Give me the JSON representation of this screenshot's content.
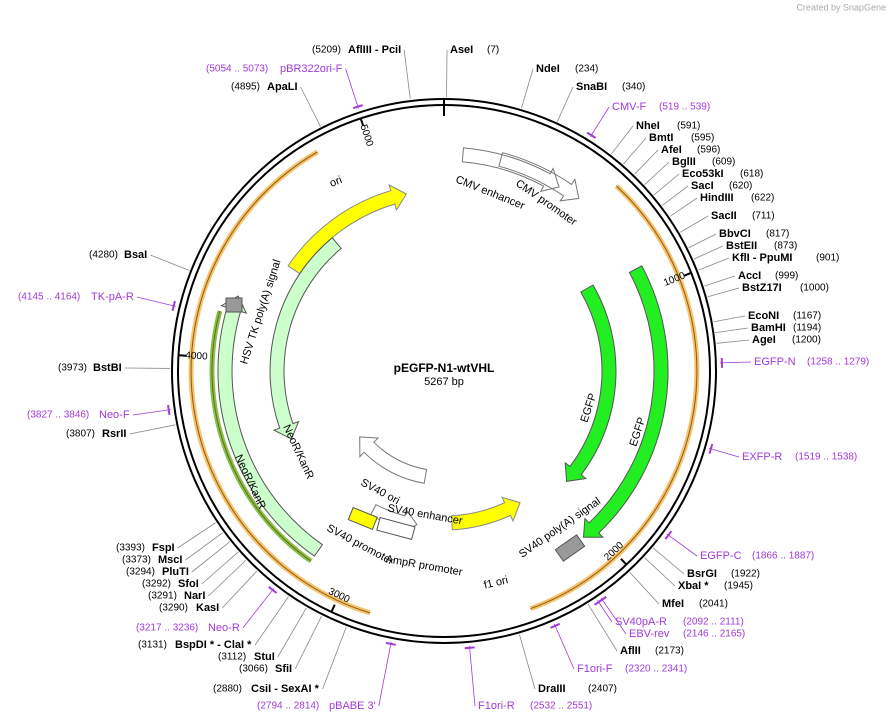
{
  "brand": "Created by SnapGene",
  "plasmid": {
    "name": "pEGFP-N1-wtVHL",
    "size": "5267 bp"
  },
  "ruler": [
    1000,
    2000,
    3000,
    4000,
    5000
  ],
  "enzymes": [
    {
      "name": "AseI",
      "site": "(7)"
    },
    {
      "name": "NdeI",
      "site": "(234)"
    },
    {
      "name": "SnaBI",
      "site": "(340)"
    },
    {
      "name": "NheI",
      "site": "(591)"
    },
    {
      "name": "BmtI",
      "site": "(595)"
    },
    {
      "name": "AfeI",
      "site": "(596)"
    },
    {
      "name": "BglII",
      "site": "(609)"
    },
    {
      "name": "Eco53kI",
      "site": "(618)"
    },
    {
      "name": "SacI",
      "site": "(620)"
    },
    {
      "name": "HindIII",
      "site": "(622)"
    },
    {
      "name": "SacII",
      "site": "(711)"
    },
    {
      "name": "BbvCI",
      "site": "(817)"
    },
    {
      "name": "BstEII",
      "site": "(873)"
    },
    {
      "name": "KflI - PpuMI",
      "site": "(901)"
    },
    {
      "name": "AccI",
      "site": "(999)"
    },
    {
      "name": "BstZ17I",
      "site": "(1000)"
    },
    {
      "name": "EcoNI",
      "site": "(1167)"
    },
    {
      "name": "BamHI",
      "site": "(1194)"
    },
    {
      "name": "AgeI",
      "site": "(1200)"
    },
    {
      "name": "BsrGI",
      "site": "(1922)"
    },
    {
      "name": "XbaI *",
      "site": "(1945)"
    },
    {
      "name": "MfeI",
      "site": "(2041)"
    },
    {
      "name": "AflII",
      "site": "(2173)"
    },
    {
      "name": "DraIII",
      "site": "(2407)"
    },
    {
      "name": "CsiI - SexAI *",
      "site": "(2880)"
    },
    {
      "name": "SfiI",
      "site": "(3066)"
    },
    {
      "name": "StuI",
      "site": "(3112)"
    },
    {
      "name": "BspDI * - ClaI *",
      "site": "(3131)"
    },
    {
      "name": "KasI",
      "site": "(3290)"
    },
    {
      "name": "NarI",
      "site": "(3291)"
    },
    {
      "name": "SfoI",
      "site": "(3292)"
    },
    {
      "name": "PluTI",
      "site": "(3294)"
    },
    {
      "name": "MscI",
      "site": "(3373)"
    },
    {
      "name": "FspI",
      "site": "(3393)"
    },
    {
      "name": "RsrII",
      "site": "(3807)"
    },
    {
      "name": "BstBI",
      "site": "(3973)"
    },
    {
      "name": "BsaI",
      "site": "(4280)"
    },
    {
      "name": "ApaLI",
      "site": "(4895)"
    },
    {
      "name": "AflIII - PciI",
      "site": "(5209)"
    }
  ],
  "primers": [
    {
      "name": "CMV-F",
      "range": "(519 .. 539)"
    },
    {
      "name": "EGFP-N",
      "range": "(1258 .. 1279)"
    },
    {
      "name": "EXFP-R",
      "range": "(1519 .. 1538)"
    },
    {
      "name": "EGFP-C",
      "range": "(1866 .. 1887)"
    },
    {
      "name": "SV40pA-R",
      "range": "(2092 .. 2111)"
    },
    {
      "name": "EBV-rev",
      "range": "(2146 .. 2165)"
    },
    {
      "name": "F1ori-F",
      "range": "(2320 .. 2341)"
    },
    {
      "name": "F1ori-R",
      "range": "(2532 .. 2551)"
    },
    {
      "name": "pBABE 3'",
      "range": "(2794 .. 2814)"
    },
    {
      "name": "Neo-R",
      "range": "(3217 .. 3236)"
    },
    {
      "name": "Neo-F",
      "range": "(3827 .. 3846)"
    },
    {
      "name": "TK-pA-R",
      "range": "(4145 .. 4164)"
    },
    {
      "name": "pBR322ori-F",
      "range": "(5054 .. 5073)"
    }
  ],
  "features": [
    "ori",
    "CMV enhancer",
    "CMV promoter",
    "EGFP",
    "EGFP",
    "HSV TK poly(A) signal",
    "NeoR/KanR",
    "NeoR/KanR",
    "SV40 ori",
    "SV40 enhancer",
    "SV40 promoter",
    "AmpR promoter",
    "f1 ori",
    "SV40 poly(A) signal"
  ]
}
